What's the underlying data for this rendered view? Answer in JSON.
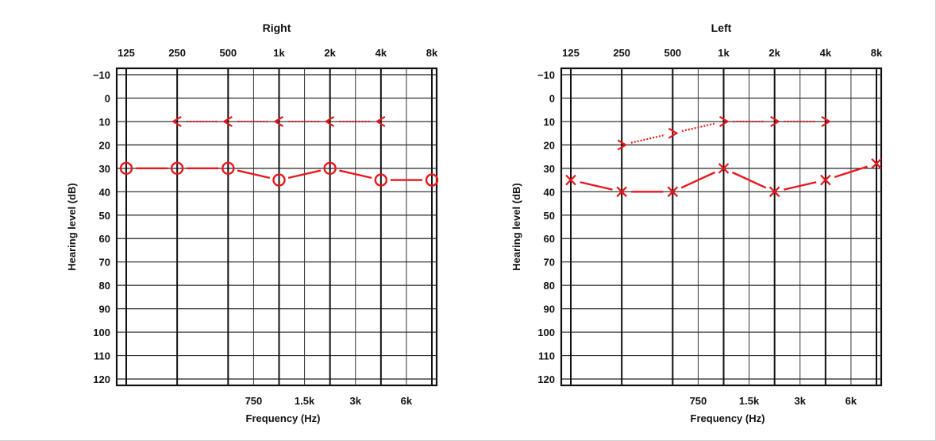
{
  "chart_data": [
    {
      "type": "line",
      "title": "Right",
      "xlabel": "Frequency (Hz)",
      "ylabel": "Hearing level (dB)",
      "x_top_ticks": [
        "125",
        "250",
        "500",
        "1k",
        "2k",
        "4k",
        "8k"
      ],
      "x_bottom_ticks": [
        "750",
        "1.5k",
        "3k",
        "6k"
      ],
      "y_ticks": [
        "−10",
        "0",
        "10",
        "20",
        "30",
        "40",
        "50",
        "60",
        "70",
        "80",
        "90",
        "100",
        "110",
        "120"
      ],
      "ylim": [
        -10,
        120
      ],
      "y_inverted": true,
      "grid": true,
      "series": [
        {
          "marker": "<",
          "color": "#e8161b",
          "line_style": "dotted",
          "x": [
            "250",
            "500",
            "1k",
            "2k",
            "4k"
          ],
          "values": [
            10,
            10,
            10,
            10,
            10
          ]
        },
        {
          "marker": "O",
          "color": "#e8161b",
          "line_style": "solid",
          "x": [
            "125",
            "250",
            "500",
            "1k",
            "2k",
            "4k",
            "8k"
          ],
          "values": [
            30,
            30,
            30,
            35,
            30,
            35,
            35
          ]
        }
      ]
    },
    {
      "type": "line",
      "title": "Left",
      "xlabel": "Frequency (Hz)",
      "ylabel": "Hearing level (dB)",
      "x_top_ticks": [
        "125",
        "250",
        "500",
        "1k",
        "2k",
        "4k",
        "8k"
      ],
      "x_bottom_ticks": [
        "750",
        "1.5k",
        "3k",
        "6k"
      ],
      "y_ticks": [
        "−10",
        "0",
        "10",
        "20",
        "30",
        "40",
        "50",
        "60",
        "70",
        "80",
        "90",
        "100",
        "110",
        "120"
      ],
      "ylim": [
        -10,
        120
      ],
      "y_inverted": true,
      "grid": true,
      "series": [
        {
          "marker": ">",
          "color": "#e8161b",
          "line_style": "dotted",
          "x": [
            "250",
            "500",
            "1k",
            "2k",
            "4k"
          ],
          "values": [
            20,
            15,
            10,
            10,
            10
          ]
        },
        {
          "marker": "X",
          "color": "#e8161b",
          "line_style": "solid",
          "x": [
            "125",
            "250",
            "500",
            "1k",
            "2k",
            "4k",
            "8k"
          ],
          "values": [
            35,
            40,
            40,
            30,
            40,
            35,
            28
          ]
        }
      ]
    }
  ]
}
